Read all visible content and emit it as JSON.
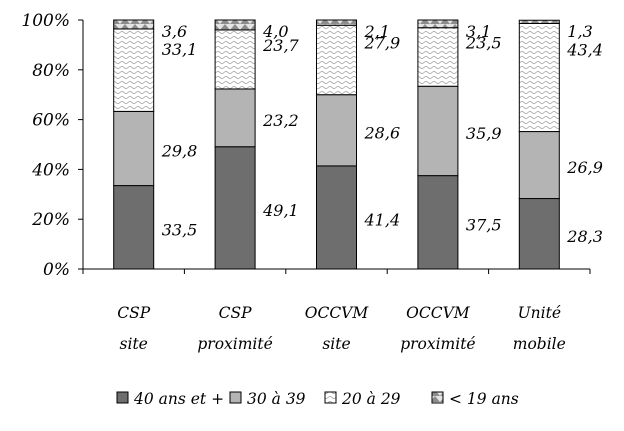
{
  "chart_data": {
    "type": "bar",
    "stacked": true,
    "percent": true,
    "categories": [
      [
        "CSP",
        "site"
      ],
      [
        "CSP",
        "proximité"
      ],
      [
        "OCCVM",
        "site"
      ],
      [
        "OCCVM",
        "proximité"
      ],
      [
        "Unité",
        "mobile"
      ]
    ],
    "series": [
      {
        "name": "40 ans et +",
        "values": [
          33.5,
          49.1,
          41.4,
          37.5,
          28.3
        ],
        "labels": [
          "33,5",
          "49,1",
          "41,4",
          "37,5",
          "28,3"
        ],
        "color": "#6e6e6e",
        "pattern": "solid"
      },
      {
        "name": "30 à 39",
        "values": [
          29.8,
          23.2,
          28.6,
          35.9,
          26.9
        ],
        "labels": [
          "29,8",
          "23,2",
          "28,6",
          "35,9",
          "26,9"
        ],
        "color": "#b4b4b4",
        "pattern": "solid"
      },
      {
        "name": "20 à 29",
        "values": [
          33.1,
          23.7,
          27.9,
          23.5,
          43.4
        ],
        "labels": [
          "33,1",
          "23,7",
          "27,9",
          "23,5",
          "43,4"
        ],
        "color": "#ffffff",
        "pattern": "wave"
      },
      {
        "name": "< 19 ans",
        "values": [
          3.6,
          4.0,
          2.1,
          3.1,
          1.3
        ],
        "labels": [
          "3,6",
          "4,0",
          "2,1",
          "3,1",
          "1,3"
        ],
        "color": "#d0d0d0",
        "pattern": "triangles"
      }
    ],
    "yticks": [
      "0%",
      "20%",
      "40%",
      "60%",
      "80%",
      "100%"
    ],
    "ylim": [
      0,
      100
    ],
    "grid": false,
    "legend_position": "bottom"
  }
}
